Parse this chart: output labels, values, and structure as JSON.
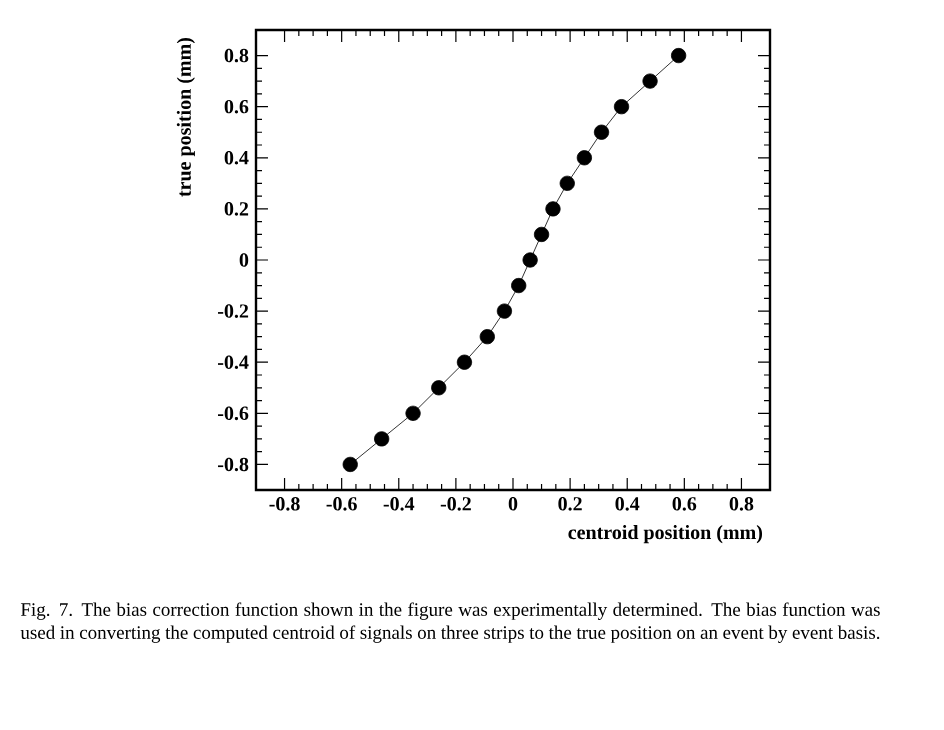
{
  "chart_data": {
    "type": "line",
    "xlabel": "centroid position (mm)",
    "ylabel": "true position (mm)",
    "x": [
      -0.57,
      -0.46,
      -0.35,
      -0.26,
      -0.17,
      -0.09,
      -0.03,
      0.02,
      0.06,
      0.1,
      0.14,
      0.19,
      0.25,
      0.31,
      0.38,
      0.48,
      0.58
    ],
    "values": [
      -0.8,
      -0.7,
      -0.6,
      -0.5,
      -0.4,
      -0.3,
      -0.2,
      -0.1,
      0,
      0.1,
      0.2,
      0.3,
      0.4,
      0.5,
      0.6,
      0.7,
      0.8
    ],
    "color": "#000000",
    "marker": "circle",
    "line_style": "solid",
    "xlim": [
      -0.9,
      0.9
    ],
    "ylim": [
      -0.9,
      0.9
    ],
    "xticks": [
      -0.8,
      -0.6,
      -0.4,
      -0.2,
      0,
      0.2,
      0.4,
      0.6,
      0.8
    ],
    "yticks": [
      -0.8,
      -0.6,
      -0.4,
      -0.2,
      0,
      0.2,
      0.4,
      0.6,
      0.8
    ],
    "grid": false,
    "annotations": [
      "Fig. 7.  The bias correction function shown in the figure was experimentally determined. The bias function was used in converting the computed centroid of signals on three strips to the true position on an event by event basis."
    ]
  }
}
